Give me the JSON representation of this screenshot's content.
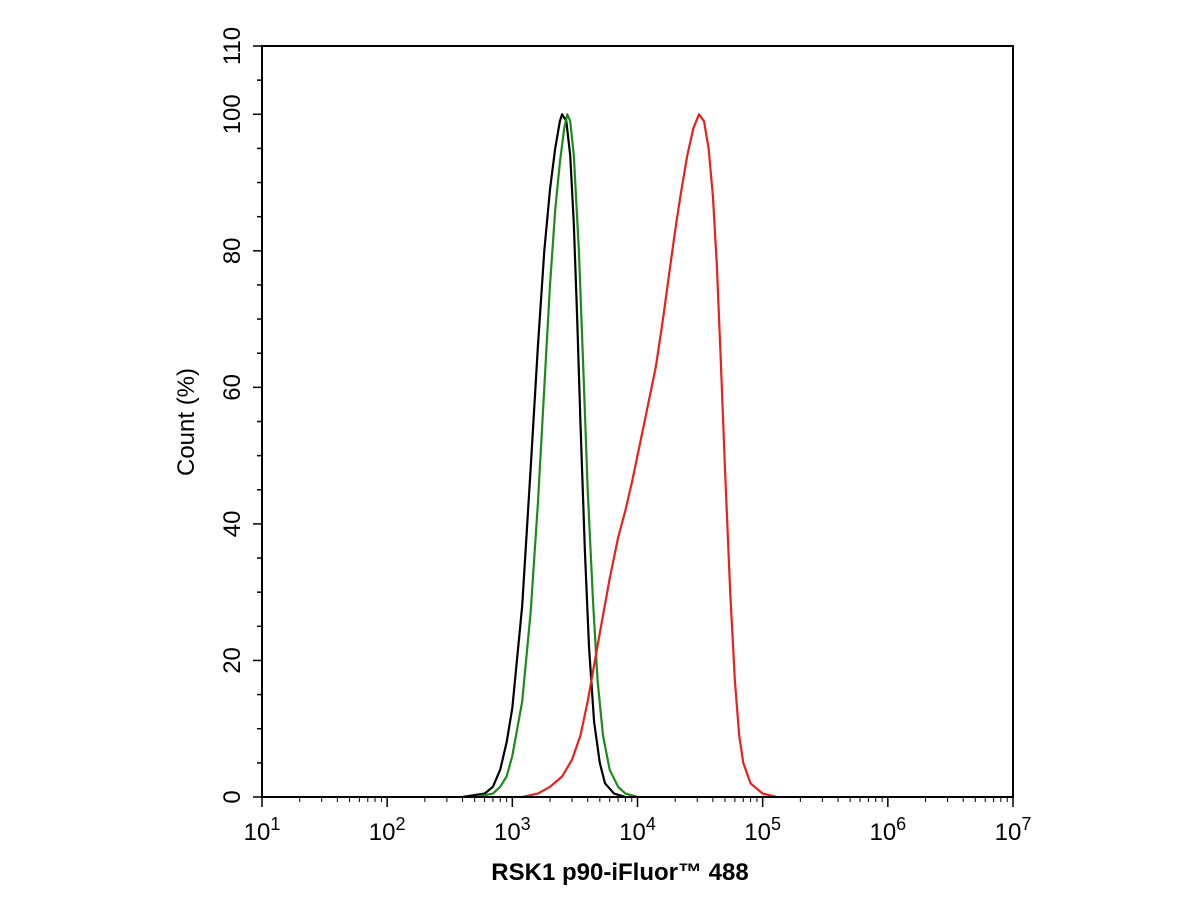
{
  "chart_data": {
    "type": "line",
    "title": "",
    "xlabel": "RSK1 p90-iFluor™ 488",
    "ylabel": "Count (%)",
    "x_scale": "log",
    "xlim": [
      10,
      10000000
    ],
    "ylim": [
      0,
      110
    ],
    "x_ticks": [
      {
        "value": 10,
        "base": "10",
        "exp": "1"
      },
      {
        "value": 100,
        "base": "10",
        "exp": "2"
      },
      {
        "value": 1000,
        "base": "10",
        "exp": "3"
      },
      {
        "value": 10000,
        "base": "10",
        "exp": "4"
      },
      {
        "value": 100000,
        "base": "10",
        "exp": "5"
      },
      {
        "value": 1000000,
        "base": "10",
        "exp": "6"
      },
      {
        "value": 10000000,
        "base": "10",
        "exp": "7"
      }
    ],
    "y_ticks": [
      0,
      20,
      40,
      60,
      80,
      100,
      110
    ],
    "grid": false,
    "legend": "none",
    "series": [
      {
        "color": "#000000",
        "points": [
          [
            400,
            0
          ],
          [
            600,
            0.5
          ],
          [
            700,
            1.5
          ],
          [
            800,
            4
          ],
          [
            900,
            8
          ],
          [
            1000,
            13
          ],
          [
            1200,
            28
          ],
          [
            1400,
            48
          ],
          [
            1600,
            66
          ],
          [
            1800,
            80
          ],
          [
            2000,
            89
          ],
          [
            2200,
            95
          ],
          [
            2400,
            99
          ],
          [
            2500,
            100
          ],
          [
            2700,
            99
          ],
          [
            2900,
            94
          ],
          [
            3100,
            84
          ],
          [
            3300,
            70
          ],
          [
            3500,
            55
          ],
          [
            3800,
            36
          ],
          [
            4100,
            22
          ],
          [
            4500,
            11
          ],
          [
            5000,
            5
          ],
          [
            5500,
            2
          ],
          [
            6500,
            0.5
          ],
          [
            8000,
            0
          ]
        ]
      },
      {
        "color": "#1a8c1a",
        "points": [
          [
            500,
            0
          ],
          [
            700,
            0.5
          ],
          [
            800,
            1.5
          ],
          [
            900,
            3
          ],
          [
            1000,
            6
          ],
          [
            1200,
            14
          ],
          [
            1400,
            27
          ],
          [
            1600,
            43
          ],
          [
            1800,
            60
          ],
          [
            2000,
            75
          ],
          [
            2200,
            86
          ],
          [
            2400,
            93
          ],
          [
            2600,
            98
          ],
          [
            2750,
            100
          ],
          [
            2900,
            99
          ],
          [
            3100,
            94
          ],
          [
            3400,
            80
          ],
          [
            3700,
            62
          ],
          [
            4000,
            45
          ],
          [
            4400,
            29
          ],
          [
            4800,
            17
          ],
          [
            5300,
            9
          ],
          [
            6000,
            4
          ],
          [
            7000,
            1.5
          ],
          [
            8000,
            0.5
          ],
          [
            10000,
            0
          ]
        ]
      },
      {
        "color": "#e8211c",
        "points": [
          [
            1200,
            0
          ],
          [
            1600,
            0.5
          ],
          [
            2000,
            1.5
          ],
          [
            2500,
            3
          ],
          [
            3000,
            5.5
          ],
          [
            3500,
            9
          ],
          [
            4000,
            14
          ],
          [
            5000,
            24
          ],
          [
            6000,
            32
          ],
          [
            7000,
            38
          ],
          [
            8000,
            42
          ],
          [
            9000,
            46
          ],
          [
            10000,
            50
          ],
          [
            12000,
            57
          ],
          [
            14000,
            63
          ],
          [
            16000,
            70
          ],
          [
            18000,
            77
          ],
          [
            20000,
            83
          ],
          [
            22000,
            88
          ],
          [
            25000,
            94
          ],
          [
            28000,
            98
          ],
          [
            31000,
            100
          ],
          [
            34000,
            99
          ],
          [
            37000,
            95
          ],
          [
            40000,
            88
          ],
          [
            43000,
            78
          ],
          [
            46000,
            65
          ],
          [
            50000,
            48
          ],
          [
            55000,
            30
          ],
          [
            60000,
            17
          ],
          [
            65000,
            9
          ],
          [
            70000,
            5
          ],
          [
            80000,
            2
          ],
          [
            100000,
            0.5
          ],
          [
            130000,
            0
          ]
        ]
      }
    ]
  }
}
